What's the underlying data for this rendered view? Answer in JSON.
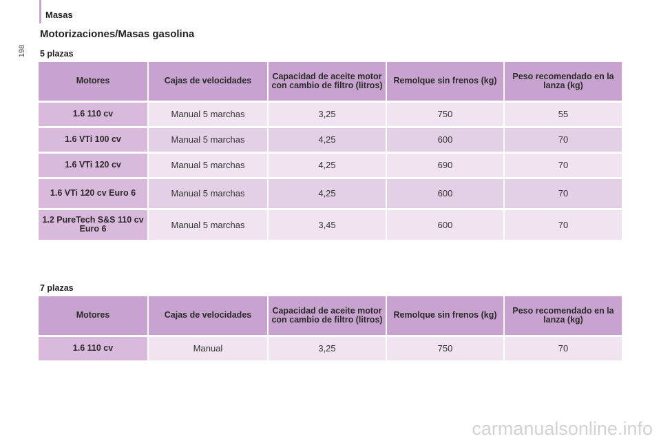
{
  "header": {
    "section": "Masas",
    "page_number": "198"
  },
  "title": "Motorizaciones/Masas gasolina",
  "columns": [
    "Motores",
    "Cajas de velocidades",
    "Capacidad de aceite motor con cambio de filtro (litros)",
    "Remolque sin frenos (kg)",
    "Peso recomendado en la lanza (kg)"
  ],
  "table5": {
    "label": "5 plazas",
    "rows": [
      [
        "1.6 110 cv",
        "Manual 5 marchas",
        "3,25",
        "750",
        "55"
      ],
      [
        "1.6 VTi 100 cv",
        "Manual 5 marchas",
        "4,25",
        "600",
        "70"
      ],
      [
        "1.6 VTi 120 cv",
        "Manual 5 marchas",
        "4,25",
        "690",
        "70"
      ],
      [
        "1.6 VTi 120 cv Euro 6",
        "Manual 5 marchas",
        "4,25",
        "600",
        "70"
      ],
      [
        "1.2 PureTech S&S 110 cv Euro 6",
        "Manual 5 marchas",
        "3,45",
        "600",
        "70"
      ]
    ]
  },
  "table7": {
    "label": "7 plazas",
    "rows": [
      [
        "1.6 110 cv",
        "Manual",
        "3,25",
        "750",
        "70"
      ]
    ]
  },
  "watermark": "carmanualsonline.info"
}
